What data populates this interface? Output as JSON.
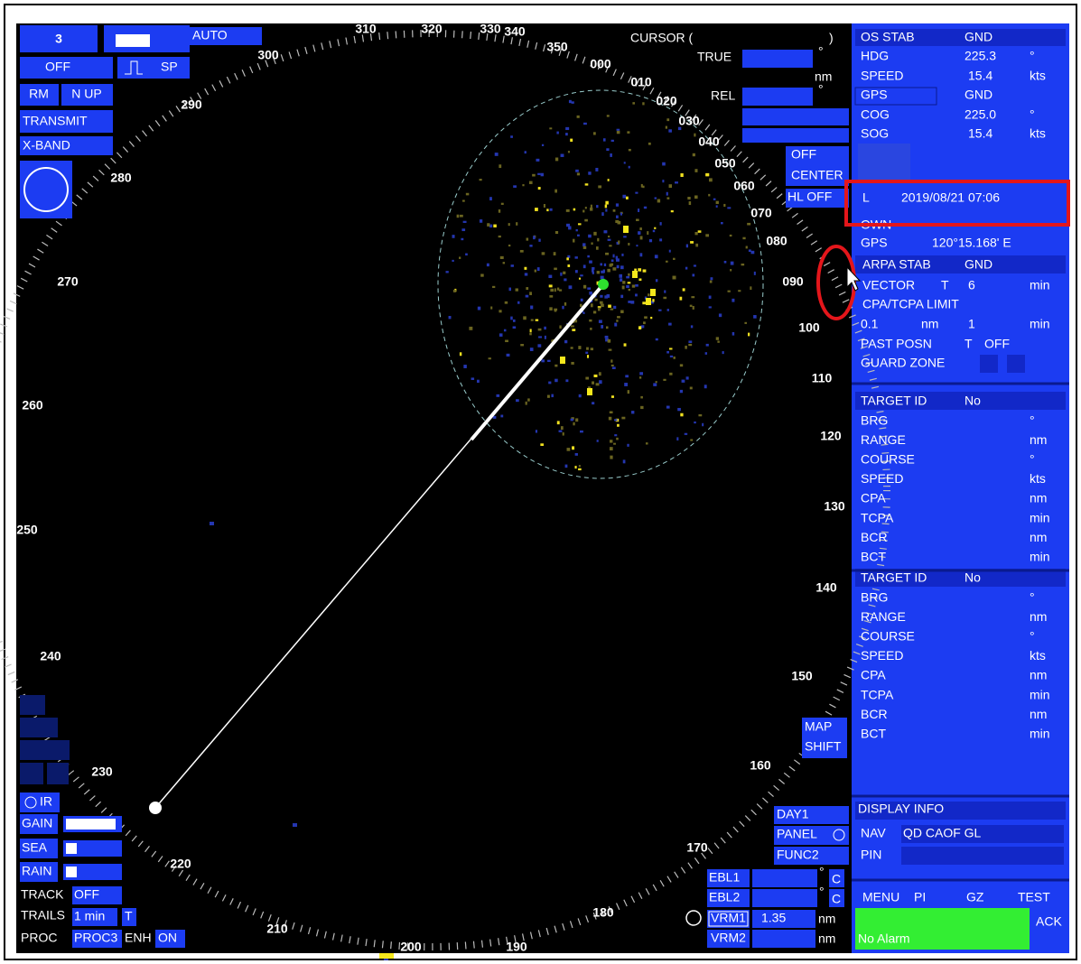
{
  "top_left": {
    "range": "3",
    "power": "OFF",
    "pulse": "SP",
    "gain_mode": "AUTO",
    "motion": "RM",
    "orientation": "N UP",
    "status": "TRANSMIT",
    "band": "X-BAND"
  },
  "cursor": {
    "label": "CURSOR (",
    "close": ")",
    "true": "TRUE",
    "true_deg": "°",
    "true_unit": "nm",
    "rel": "REL",
    "rel_deg": "°"
  },
  "center_controls": {
    "off": "OFF",
    "center": "CENTER",
    "hl": "HL OFF"
  },
  "bearing_labels": [
    "000",
    "010",
    "020",
    "030",
    "040",
    "050",
    "060",
    "070",
    "080",
    "090",
    "100",
    "110",
    "120",
    "130",
    "140",
    "150",
    "160",
    "170",
    "180",
    "190",
    "200",
    "210",
    "220",
    "230",
    "240",
    "250",
    "260",
    "270",
    "280",
    "290",
    "300",
    "310",
    "320",
    "330",
    "340",
    "350"
  ],
  "map_shift": [
    "MAP",
    "SHIFT"
  ],
  "left_controls": {
    "ir": "IR",
    "gain": "GAIN",
    "sea": "SEA",
    "rain": "RAIN",
    "track": "TRACK",
    "track_value": "OFF",
    "trails": "TRAILS",
    "trails_value": "1 min",
    "trails_mode": "T",
    "proc": "PROC",
    "proc_value": "PROC3",
    "enh": "ENH",
    "enh_value": "ON"
  },
  "bottom_right": {
    "day": "DAY1",
    "panel": "PANEL",
    "func": "FUNC2",
    "ebl1": "EBL1",
    "ebl1_deg": "°",
    "ebl1_mode": "C",
    "ebl2": "EBL2",
    "ebl2_deg": "°",
    "ebl2_mode": "C",
    "vrm1": "VRM1",
    "vrm1_value": "1.35",
    "vrm1_unit": "nm",
    "vrm2": "VRM2",
    "vrm2_unit": "nm"
  },
  "own_ship_panel": {
    "rows": [
      [
        "OS STAB",
        "GND"
      ],
      [
        "HDG",
        "225.3",
        "°"
      ],
      [
        "SPEED",
        "15.4",
        "kts"
      ],
      [
        "GPS",
        "GND"
      ],
      [
        "COG",
        "225.0",
        "°"
      ],
      [
        "SOG",
        "15.4",
        "kts"
      ]
    ]
  },
  "position_panel": {
    "rows": [
      [
        "L",
        "2019/08/21 07:06"
      ],
      [
        "OWN"
      ],
      [
        "GPS",
        "120°15.168' E"
      ]
    ]
  },
  "arpa_panel": {
    "rows": [
      [
        "ARPA STAB",
        "GND"
      ],
      [
        "VECTOR",
        "T",
        "6",
        "min"
      ],
      [
        "CPA/TCPA LIMIT"
      ],
      [
        "0.1",
        "nm",
        "1",
        "min"
      ],
      [
        "PAST POSN",
        "T",
        "OFF"
      ],
      [
        "GUARD ZONE"
      ]
    ]
  },
  "targets": [
    {
      "rows": [
        [
          "TARGET ID",
          "No"
        ],
        [
          "BRG",
          "°"
        ],
        [
          "RANGE",
          "nm"
        ],
        [
          "COURSE",
          "°"
        ],
        [
          "SPEED",
          "kts"
        ],
        [
          "CPA",
          "nm"
        ],
        [
          "TCPA",
          "min"
        ],
        [
          "BCR",
          "nm"
        ],
        [
          "BCT",
          "min"
        ]
      ]
    },
    {
      "rows": [
        [
          "TARGET ID",
          "No"
        ],
        [
          "BRG",
          "°"
        ],
        [
          "RANGE",
          "nm"
        ],
        [
          "COURSE",
          "°"
        ],
        [
          "SPEED",
          "kts"
        ],
        [
          "CPA",
          "nm"
        ],
        [
          "TCPA",
          "min"
        ],
        [
          "BCR",
          "nm"
        ],
        [
          "BCT",
          "min"
        ]
      ]
    }
  ],
  "display_info": {
    "title": "DISPLAY INFO",
    "rows": [
      [
        "NAV",
        "QD CAOF GL"
      ],
      [
        "PIN"
      ]
    ]
  },
  "footer": {
    "buttons": [
      "MENU",
      "PI",
      "GZ",
      "TEST"
    ],
    "ack": "ACK",
    "alarm": "No Alarm"
  }
}
